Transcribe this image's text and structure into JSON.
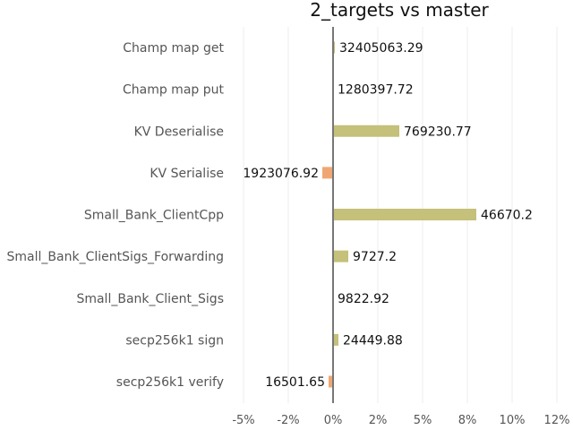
{
  "chart_data": {
    "type": "bar",
    "orientation": "horizontal",
    "title": "2_targets vs master",
    "xlabel": "",
    "ylabel": "",
    "xlim": [
      -5,
      12.5
    ],
    "x_ticks": [
      -5,
      -2.5,
      0,
      2.5,
      5,
      7.5,
      10,
      12.5
    ],
    "x_tick_labels": [
      "-5%",
      "-2%",
      "0%",
      "2%",
      "5%",
      "8%",
      "10%",
      "12%"
    ],
    "grid": true,
    "categories": [
      "Champ map get",
      "Champ map put",
      "KV Deserialise",
      "KV Serialise",
      "Small_Bank_ClientCpp",
      "Small_Bank_ClientSigs_Forwarding",
      "Small_Bank_Client_Sigs",
      "secp256k1 sign",
      "secp256k1 verify"
    ],
    "values": [
      0.1,
      0.0,
      3.7,
      -0.6,
      8.0,
      0.85,
      0.0,
      0.3,
      -0.25
    ],
    "data_labels": [
      "32405063.29",
      "1280397.72",
      "769230.77",
      "1923076.92",
      "46670.2",
      "9727.2",
      "9822.92",
      "24449.88",
      "16501.65"
    ],
    "colors": {
      "positive": "#c5c07a",
      "negative": "#f0a672",
      "zero_line": "#777777",
      "grid": "#eeeeee"
    }
  }
}
